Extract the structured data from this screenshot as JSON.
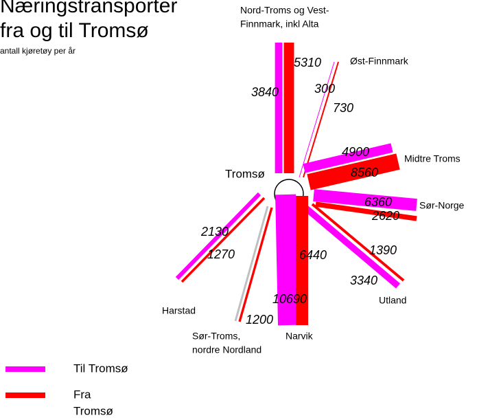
{
  "header": {
    "title_lines": [
      "Næringstransporter",
      "fra og til Tromsø"
    ],
    "subtitle": "antall kjøretøy per år"
  },
  "center": "Tromsø",
  "routes": [
    {
      "name_lines": [
        "Nord-Troms og Vest-",
        "Finnmark, inkl Alta"
      ],
      "til": 3840,
      "fra": 5310
    },
    {
      "name_lines": [
        "Øst-Finnmark"
      ],
      "til": 300,
      "fra": 730
    },
    {
      "name_lines": [
        "Midtre Troms"
      ],
      "til": 4900,
      "fra": 8560
    },
    {
      "name_lines": [
        "Sør-Norge"
      ],
      "til": 6360,
      "fra": 2620
    },
    {
      "name_lines": [
        "Utland"
      ],
      "til": 3340,
      "fra": 1390
    },
    {
      "name_lines": [
        "Narvik"
      ],
      "til": 10690,
      "fra": 6440
    },
    {
      "name_lines": [
        "Sør-Troms,",
        "nordre Nordland"
      ],
      "fra": 1200
    },
    {
      "name_lines": [
        "Harstad"
      ],
      "til": 2130,
      "fra": 1270
    }
  ],
  "legend": [
    {
      "label_lines": [
        "Til Tromsø"
      ],
      "color": "#ff00ff"
    },
    {
      "label_lines": [
        "Fra",
        "Tromsø"
      ],
      "color": "#ff0000"
    }
  ]
}
